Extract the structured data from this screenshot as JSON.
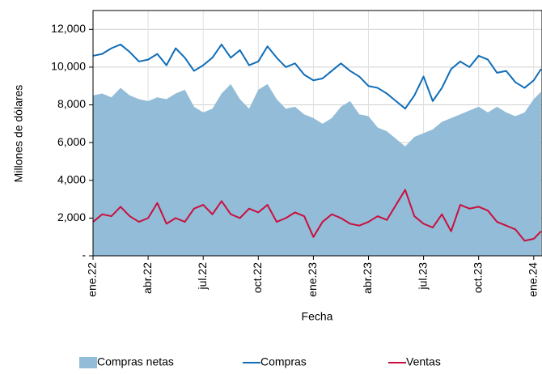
{
  "chart_data": {
    "type": "line",
    "ylabel": "Millones de dólares",
    "xlabel": "Fecha",
    "x": [
      0,
      0.5,
      1,
      1.5,
      2,
      2.5,
      3,
      3.5,
      4,
      4.5,
      5,
      5.5,
      6,
      6.5,
      7,
      7.5,
      8,
      8.5,
      9,
      9.5,
      10,
      10.5,
      11,
      11.5,
      12,
      12.5,
      13,
      13.5,
      14,
      14.5,
      15,
      15.5,
      16,
      16.5,
      17,
      17.5,
      18,
      18.5,
      19,
      19.5,
      20,
      20.5,
      21,
      21.5,
      22,
      22.5,
      23,
      23.5,
      24,
      24.4
    ],
    "series": [
      {
        "name": "Compras netas",
        "type": "area",
        "color": "#92bcd8",
        "values": [
          8500,
          8600,
          8400,
          8900,
          8500,
          8300,
          8200,
          8400,
          8300,
          8600,
          8800,
          7900,
          7600,
          7800,
          8600,
          9100,
          8300,
          7800,
          8800,
          9100,
          8300,
          7800,
          7900,
          7500,
          7300,
          7000,
          7300,
          7900,
          8200,
          7500,
          7400,
          6800,
          6600,
          6200,
          5800,
          6300,
          6500,
          6700,
          7100,
          7300,
          7500,
          7700,
          7900,
          7600,
          7900,
          7600,
          7400,
          7600,
          8300,
          8700
        ]
      },
      {
        "name": "Compras",
        "type": "line",
        "color": "#0f6db8",
        "values": [
          10600,
          10700,
          11000,
          11200,
          10800,
          10300,
          10400,
          10700,
          10100,
          11000,
          10500,
          9800,
          10100,
          10500,
          11200,
          10500,
          10900,
          10100,
          10300,
          11100,
          10500,
          10000,
          10200,
          9600,
          9300,
          9400,
          9800,
          10200,
          9800,
          9500,
          9000,
          8900,
          8600,
          8200,
          7800,
          8500,
          9500,
          8200,
          8900,
          9900,
          10300,
          10000,
          10600,
          10400,
          9700,
          9800,
          9200,
          8900,
          9300,
          9900
        ]
      },
      {
        "name": "Ventas",
        "type": "line",
        "color": "#c8103e",
        "values": [
          1800,
          2200,
          2100,
          2600,
          2100,
          1800,
          2000,
          2800,
          1700,
          2000,
          1800,
          2500,
          2700,
          2200,
          2900,
          2200,
          2000,
          2500,
          2300,
          2700,
          1800,
          2000,
          2300,
          2100,
          1000,
          1800,
          2200,
          2000,
          1700,
          1600,
          1800,
          2100,
          1900,
          2700,
          3500,
          2100,
          1700,
          1500,
          2200,
          1300,
          2700,
          2500,
          2600,
          2400,
          1800,
          1600,
          1400,
          800,
          900,
          1300
        ]
      }
    ],
    "xlim": [
      0,
      24.45
    ],
    "xticks": [
      {
        "value": 0,
        "label": "ene.22"
      },
      {
        "value": 3,
        "label": "abr.22"
      },
      {
        "value": 6,
        "label": "jul.22"
      },
      {
        "value": 9,
        "label": "oct.22"
      },
      {
        "value": 12,
        "label": "ene.23"
      },
      {
        "value": 15,
        "label": "abr.23"
      },
      {
        "value": 18,
        "label": "jul.23"
      },
      {
        "value": 21,
        "label": "oct.23"
      },
      {
        "value": 24,
        "label": "ene.24"
      }
    ],
    "ylim": [
      0,
      13000
    ],
    "yticks": [
      {
        "value": 0,
        "label": "-"
      },
      {
        "value": 2000,
        "label": "2,000"
      },
      {
        "value": 4000,
        "label": "4,000"
      },
      {
        "value": 6000,
        "label": "6,000"
      },
      {
        "value": 8000,
        "label": "8,000"
      },
      {
        "value": 10000,
        "label": "10,000"
      },
      {
        "value": 12000,
        "label": "12,000"
      }
    ],
    "grid": true
  }
}
